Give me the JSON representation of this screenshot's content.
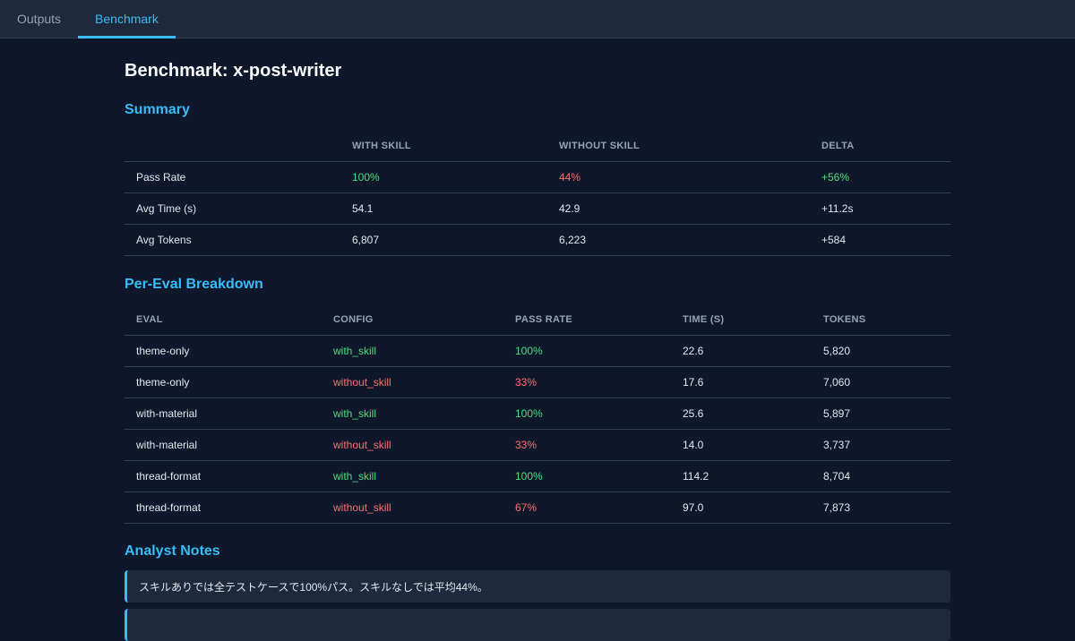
{
  "tabs": [
    {
      "label": "Outputs",
      "active": false
    },
    {
      "label": "Benchmark",
      "active": true
    }
  ],
  "page_title": "Benchmark: x-post-writer",
  "summary": {
    "heading": "Summary",
    "headers": [
      "",
      "WITH SKILL",
      "WITHOUT SKILL",
      "DELTA"
    ],
    "rows": [
      {
        "metric": "Pass Rate",
        "with": "100%",
        "without": "44%",
        "delta": "+56%"
      },
      {
        "metric": "Avg Time (s)",
        "with": "54.1",
        "without": "42.9",
        "delta": "+11.2s"
      },
      {
        "metric": "Avg Tokens",
        "with": "6,807",
        "without": "6,223",
        "delta": "+584"
      }
    ]
  },
  "breakdown": {
    "heading": "Per-Eval Breakdown",
    "headers": [
      "EVAL",
      "CONFIG",
      "PASS RATE",
      "TIME (S)",
      "TOKENS"
    ],
    "rows": [
      {
        "eval": "theme-only",
        "config": "with_skill",
        "pass": "100%",
        "time": "22.6",
        "tokens": "5,820"
      },
      {
        "eval": "theme-only",
        "config": "without_skill",
        "pass": "33%",
        "time": "17.6",
        "tokens": "7,060"
      },
      {
        "eval": "with-material",
        "config": "with_skill",
        "pass": "100%",
        "time": "25.6",
        "tokens": "5,897"
      },
      {
        "eval": "with-material",
        "config": "without_skill",
        "pass": "33%",
        "time": "14.0",
        "tokens": "3,737"
      },
      {
        "eval": "thread-format",
        "config": "with_skill",
        "pass": "100%",
        "time": "114.2",
        "tokens": "8,704"
      },
      {
        "eval": "thread-format",
        "config": "without_skill",
        "pass": "67%",
        "time": "97.0",
        "tokens": "7,873"
      }
    ]
  },
  "notes": {
    "heading": "Analyst Notes",
    "items": [
      "スキルありでは全テストケースで100%パス。スキルなしでは平均44%。",
      ""
    ]
  },
  "colors": {
    "accent": "#38bdf8",
    "good": "#4ade80",
    "bad": "#f87171",
    "background": "#0f172a",
    "panel": "#1e293b"
  }
}
